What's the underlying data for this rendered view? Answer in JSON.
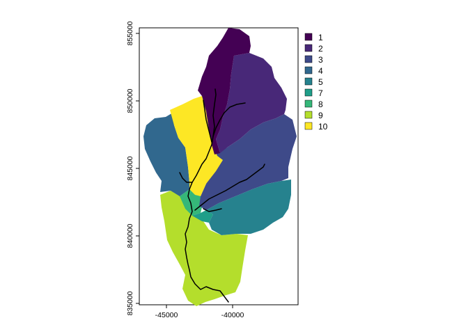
{
  "map": {
    "type": "watershed-subbasins",
    "x_ticks": [
      "-45000",
      "-40000"
    ],
    "y_ticks": [
      "835000",
      "840000",
      "845000",
      "850000",
      "855000"
    ],
    "legend": [
      {
        "label": "1",
        "color": "#440154"
      },
      {
        "label": "2",
        "color": "#482878"
      },
      {
        "label": "3",
        "color": "#3E4A89"
      },
      {
        "label": "4",
        "color": "#31688E"
      },
      {
        "label": "5",
        "color": "#26828E"
      },
      {
        "label": "7",
        "color": "#1F9E89"
      },
      {
        "label": "8",
        "color": "#35B779"
      },
      {
        "label": "9",
        "color": "#B4DE2C"
      },
      {
        "label": "10",
        "color": "#FDE725"
      }
    ],
    "stream_color": "#000000"
  }
}
